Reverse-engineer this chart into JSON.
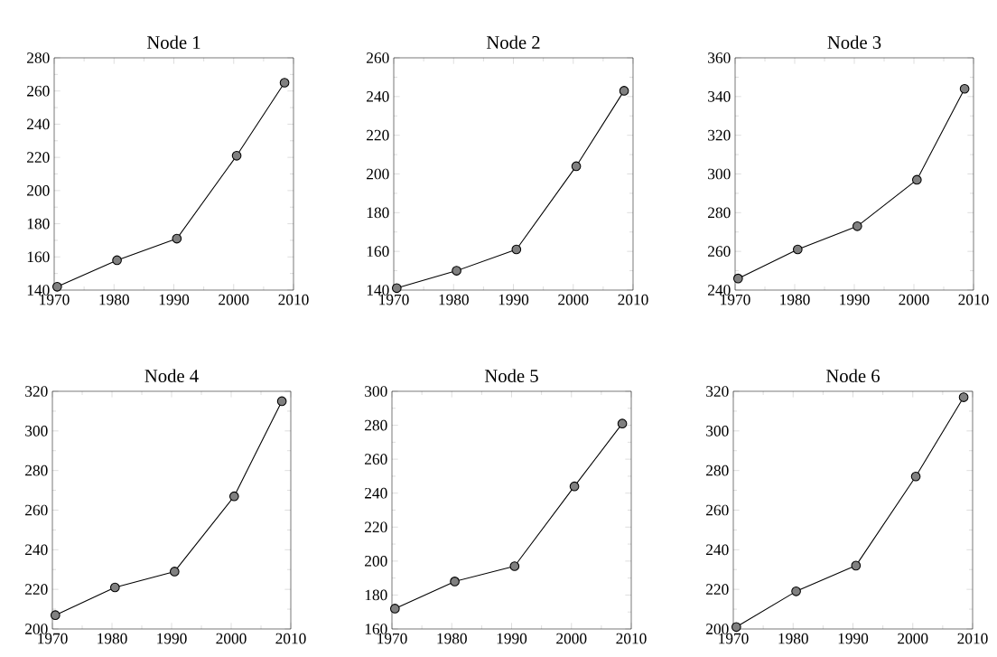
{
  "chart_data": [
    {
      "type": "line",
      "title": "Node 1",
      "x": [
        1970.5,
        1980.5,
        1990.5,
        2000.5,
        2008.5
      ],
      "xlim": [
        1970,
        2010
      ],
      "xticks": [
        1970,
        1980,
        1990,
        2000,
        2010
      ],
      "ylim": [
        140,
        280
      ],
      "yticks": [
        140,
        160,
        180,
        200,
        220,
        240,
        260,
        280
      ],
      "marker": "circle",
      "series": [
        {
          "color": "#000000",
          "values": [
            142,
            158,
            171,
            221,
            265
          ]
        }
      ]
    },
    {
      "type": "line",
      "title": "Node 2",
      "x": [
        1970.5,
        1980.5,
        1990.5,
        2000.5,
        2008.5
      ],
      "xlim": [
        1970,
        2010
      ],
      "xticks": [
        1970,
        1980,
        1990,
        2000,
        2010
      ],
      "ylim": [
        140,
        260
      ],
      "yticks": [
        140,
        160,
        180,
        200,
        220,
        240,
        260
      ],
      "marker": "circle",
      "series": [
        {
          "color": "#000000",
          "values": [
            141,
            150,
            161,
            204,
            243
          ]
        }
      ]
    },
    {
      "type": "line",
      "title": "Node 3",
      "x": [
        1970.5,
        1980.5,
        1990.5,
        2000.5,
        2008.5
      ],
      "xlim": [
        1970,
        2010
      ],
      "xticks": [
        1970,
        1980,
        1990,
        2000,
        2010
      ],
      "ylim": [
        240,
        360
      ],
      "yticks": [
        240,
        260,
        280,
        300,
        320,
        340,
        360
      ],
      "marker": "circle",
      "series": [
        {
          "color": "#000000",
          "values": [
            246,
            261,
            273,
            297,
            344
          ]
        }
      ]
    },
    {
      "type": "line",
      "title": "Node 4",
      "x": [
        1970.5,
        1980.5,
        1990.5,
        2000.5,
        2008.5
      ],
      "xlim": [
        1970,
        2010
      ],
      "xticks": [
        1970,
        1980,
        1990,
        2000,
        2010
      ],
      "ylim": [
        200,
        320
      ],
      "yticks": [
        200,
        220,
        240,
        260,
        280,
        300,
        320
      ],
      "marker": "circle",
      "series": [
        {
          "color": "#000000",
          "values": [
            207,
            221,
            229,
            267,
            315
          ]
        }
      ]
    },
    {
      "type": "line",
      "title": "Node 5",
      "x": [
        1970.5,
        1980.5,
        1990.5,
        2000.5,
        2008.5
      ],
      "xlim": [
        1970,
        2010
      ],
      "xticks": [
        1970,
        1980,
        1990,
        2000,
        2010
      ],
      "ylim": [
        160,
        300
      ],
      "yticks": [
        160,
        180,
        200,
        220,
        240,
        260,
        280,
        300
      ],
      "marker": "circle",
      "series": [
        {
          "color": "#000000",
          "values": [
            172,
            188,
            197,
            244,
            281
          ]
        }
      ]
    },
    {
      "type": "line",
      "title": "Node 6",
      "x": [
        1970.5,
        1980.5,
        1990.5,
        2000.5,
        2008.5
      ],
      "xlim": [
        1970,
        2010
      ],
      "xticks": [
        1970,
        1980,
        1990,
        2000,
        2010
      ],
      "ylim": [
        200,
        320
      ],
      "yticks": [
        200,
        220,
        240,
        260,
        280,
        300,
        320
      ],
      "marker": "circle",
      "series": [
        {
          "color": "#000000",
          "values": [
            201,
            219,
            232,
            277,
            317
          ]
        }
      ]
    }
  ]
}
